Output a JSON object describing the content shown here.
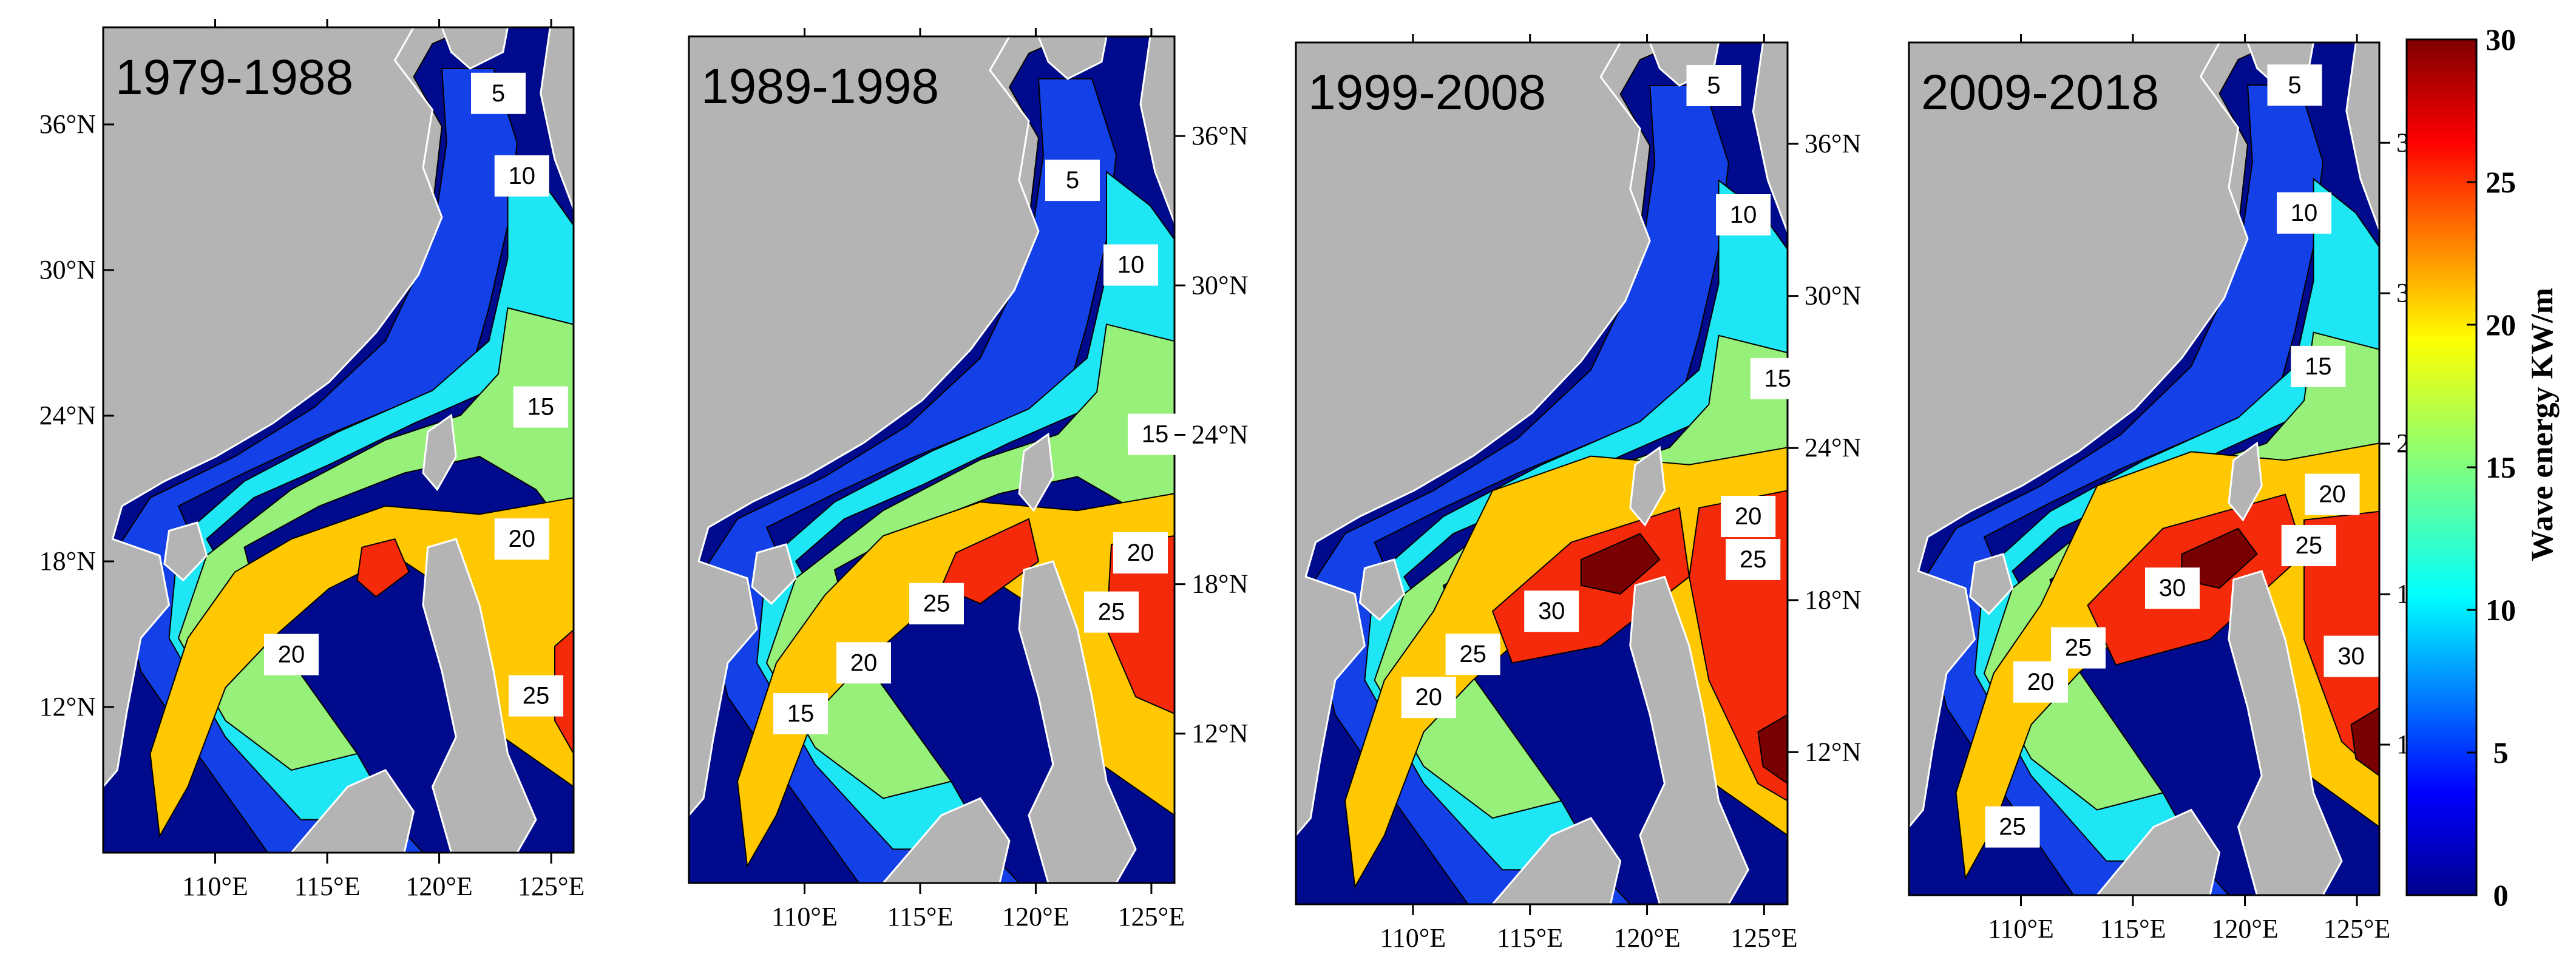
{
  "figure": {
    "colorbar": {
      "title": "Wave energy KW/m",
      "ticks": [
        "0",
        "5",
        "10",
        "15",
        "20",
        "25",
        "30"
      ],
      "range": [
        0,
        30
      ],
      "colormap": "jet"
    },
    "colors": {
      "land": "#b4b4b4",
      "level_0_5": "#000a8c",
      "level_5_10": "#1440e8",
      "level_10_15": "#1ee6f5",
      "level_15_20": "#96f07a",
      "level_20_25": "#ffc800",
      "level_25_30": "#f52a0a",
      "level_30_plus": "#780000"
    },
    "lat_ticks": [
      "12°N",
      "18°N",
      "24°N",
      "30°N",
      "36°N"
    ],
    "lon_ticks": [
      "110°E",
      "115°E",
      "120°E",
      "125°E"
    ],
    "panels": [
      {
        "title": "1979-1988",
        "contour_labels": [
          "5",
          "10",
          "15",
          "20",
          "20",
          "25"
        ]
      },
      {
        "title": "1989-1998",
        "contour_labels": [
          "5",
          "10",
          "15",
          "20",
          "25",
          "25",
          "20",
          "15"
        ]
      },
      {
        "title": "1999-2008",
        "contour_labels": [
          "5",
          "10",
          "15",
          "20",
          "25",
          "30",
          "25",
          "20"
        ]
      },
      {
        "title": "2009-2018",
        "contour_labels": [
          "5",
          "10",
          "15",
          "20",
          "25",
          "30",
          "30",
          "25",
          "20",
          "25"
        ]
      }
    ]
  }
}
